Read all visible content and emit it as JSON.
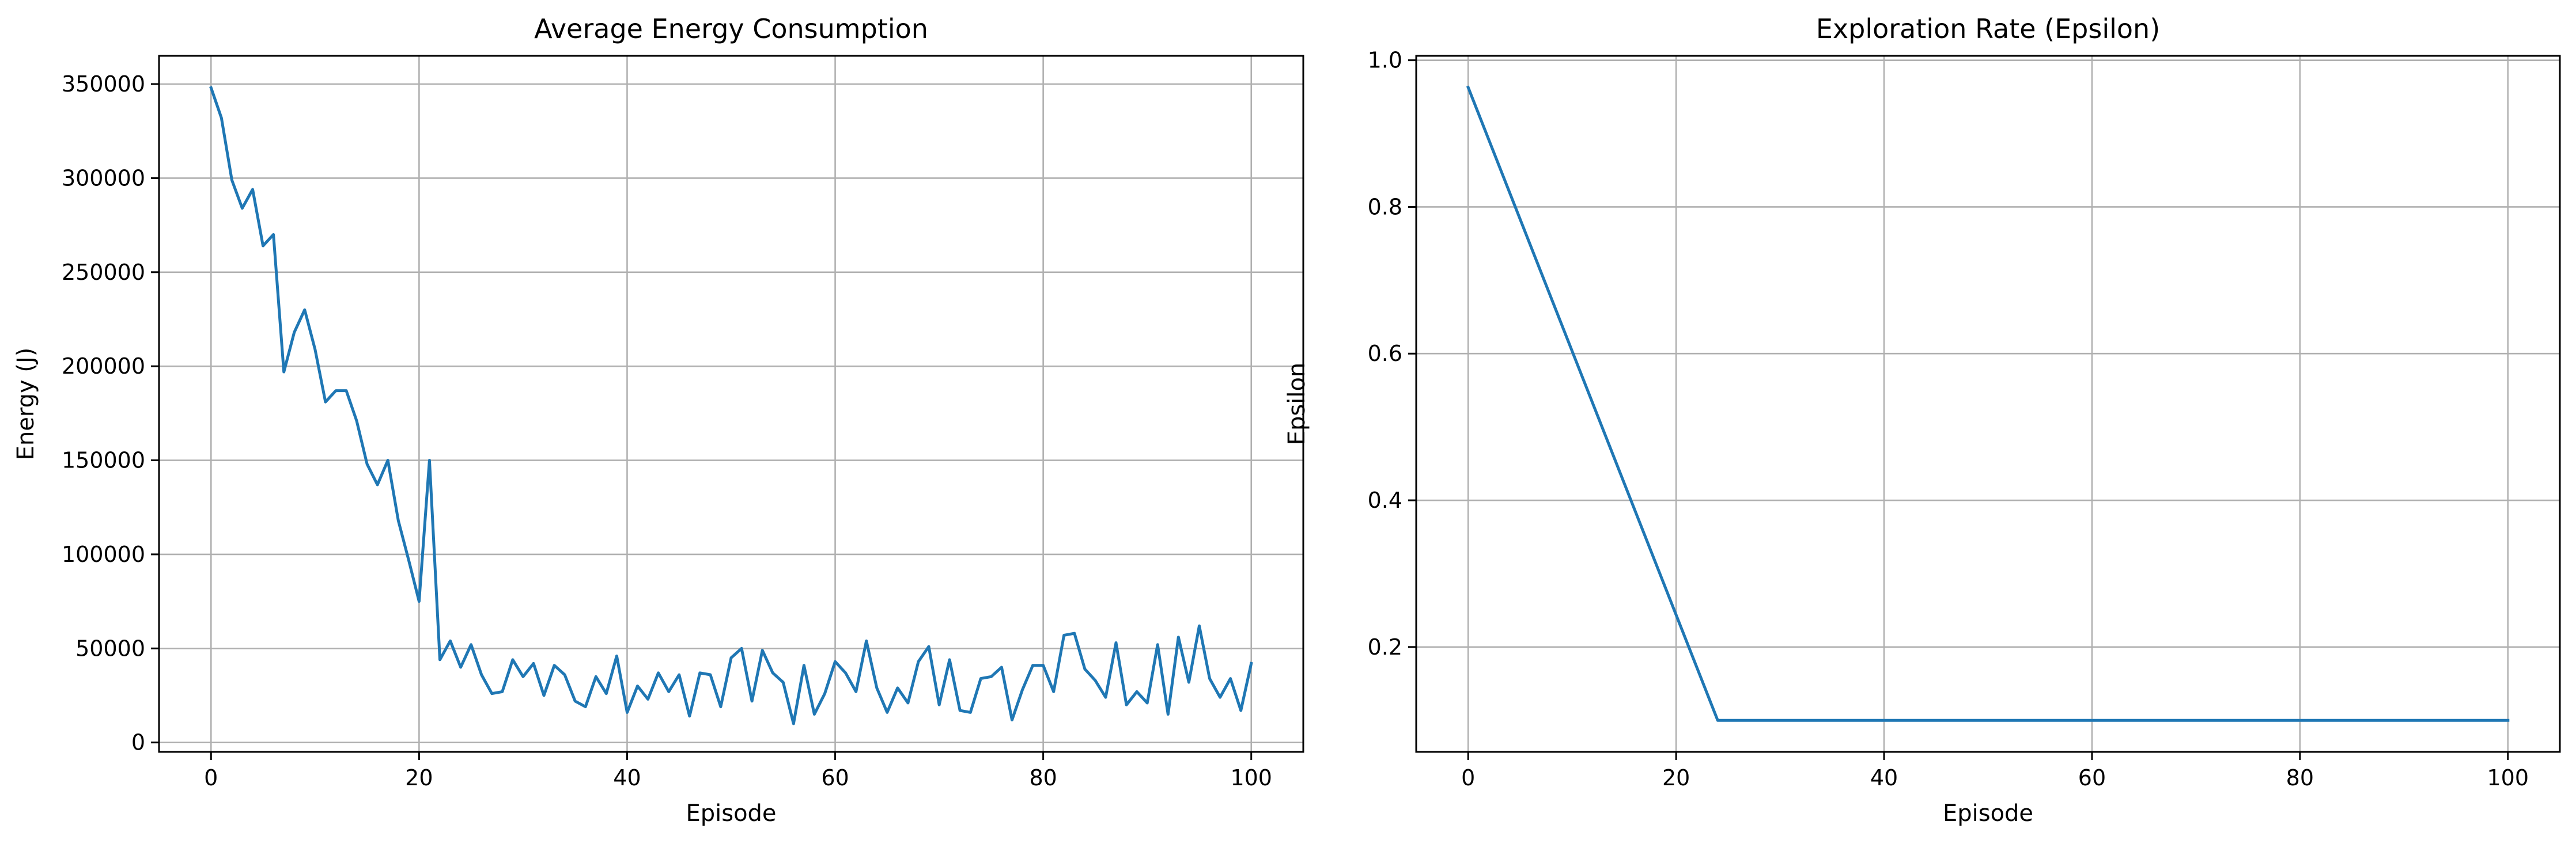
{
  "chart_data": [
    {
      "type": "line",
      "title": "Average Energy Consumption",
      "xlabel": "Episode",
      "ylabel": "Energy (J)",
      "xlim": [
        -5,
        105
      ],
      "ylim": [
        -5000,
        365000
      ],
      "xticks": [
        0,
        20,
        40,
        60,
        80,
        100
      ],
      "yticks": [
        0,
        50000,
        100000,
        150000,
        200000,
        250000,
        300000,
        350000
      ],
      "grid": true,
      "color": "#1f77b4",
      "series": [
        {
          "x": [
            0,
            1,
            2,
            3,
            4,
            5,
            6,
            7,
            8,
            9,
            10,
            11,
            12,
            13,
            14,
            15,
            16,
            17,
            18,
            19,
            20,
            21,
            22,
            23,
            24,
            25,
            26,
            27,
            28,
            29,
            30,
            31,
            32,
            33,
            34,
            35,
            36,
            37,
            38,
            39,
            40,
            41,
            42,
            43,
            44,
            45,
            46,
            47,
            48,
            49,
            50,
            51,
            52,
            53,
            54,
            55,
            56,
            57,
            58,
            59,
            60,
            61,
            62,
            63,
            64,
            65,
            66,
            67,
            68,
            69,
            70,
            71,
            72,
            73,
            74,
            75,
            76,
            77,
            78,
            79,
            80,
            81,
            82,
            83,
            84,
            85,
            86,
            87,
            88,
            89,
            90,
            91,
            92,
            93,
            94,
            95,
            96,
            97,
            98,
            99,
            100
          ],
          "values": [
            348000,
            332000,
            299000,
            284000,
            294000,
            264000,
            270000,
            197000,
            218000,
            230000,
            209000,
            181000,
            187000,
            187000,
            171000,
            148000,
            137000,
            150000,
            118000,
            97000,
            75000,
            150000,
            44000,
            54000,
            40000,
            52000,
            36000,
            26000,
            27000,
            44000,
            35000,
            42000,
            25000,
            41000,
            36000,
            22000,
            19000,
            35000,
            26000,
            46000,
            16000,
            30000,
            23000,
            37000,
            27000,
            36000,
            14000,
            37000,
            36000,
            19000,
            45000,
            50000,
            22000,
            49000,
            37000,
            32000,
            10000,
            41000,
            15000,
            26000,
            43000,
            37000,
            27000,
            54000,
            29000,
            16000,
            29000,
            21000,
            43000,
            51000,
            20000,
            44000,
            17000,
            16000,
            34000,
            35000,
            40000,
            12000,
            28000,
            41000,
            41000,
            27000,
            57000,
            58000,
            39000,
            33000,
            24000,
            53000,
            20000,
            27000,
            21000,
            52000,
            15000,
            56000,
            32000,
            62000,
            34000,
            24000,
            34000,
            17000,
            42000
          ]
        }
      ]
    },
    {
      "type": "line",
      "title": "Exploration Rate (Epsilon)",
      "xlabel": "Episode",
      "ylabel": "Epsilon",
      "xlim": [
        -5,
        105
      ],
      "ylim": [
        0.057,
        1.006
      ],
      "xticks": [
        0,
        20,
        40,
        60,
        80,
        100
      ],
      "yticks": [
        0.2,
        0.4,
        0.6,
        0.8,
        1.0
      ],
      "ytick_labels": [
        "0.2",
        "0.4",
        "0.6",
        "0.8",
        "1.0"
      ],
      "grid": true,
      "color": "#1f77b4",
      "series": [
        {
          "x": [
            0,
            24,
            100
          ],
          "values": [
            0.963,
            0.1,
            0.1
          ]
        }
      ]
    }
  ]
}
